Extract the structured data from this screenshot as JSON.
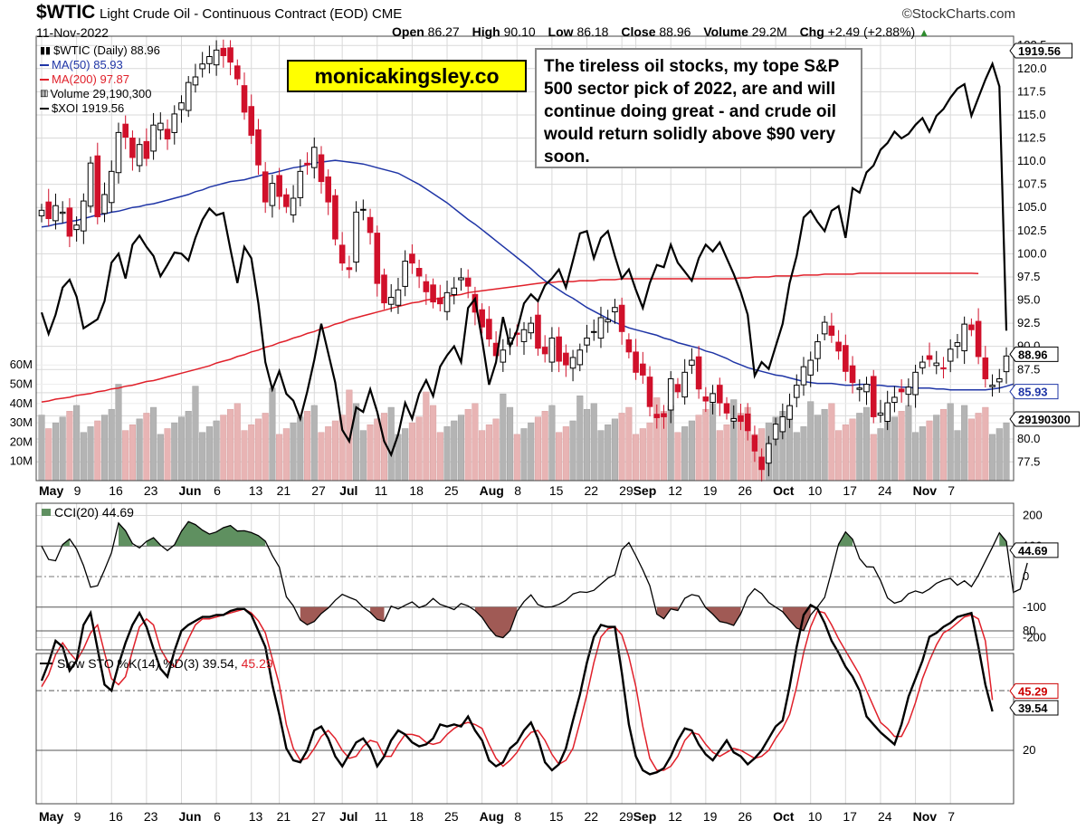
{
  "header": {
    "symbol": "$WTIC",
    "contract": "Light Crude Oil - Continuous Contract (EOD)",
    "exchange": "CME",
    "source": "©StockCharts.com",
    "date": "11-Nov-2022",
    "ohlc": [
      {
        "label": "Open",
        "value": "86.27"
      },
      {
        "label": "High",
        "value": "90.10"
      },
      {
        "label": "Low",
        "value": "86.18"
      },
      {
        "label": "Close",
        "value": "88.96"
      },
      {
        "label": "Volume",
        "value": "29.2M"
      }
    ],
    "chg_label": "Chg",
    "chg_value": "+2.49 (+2.88%)"
  },
  "legend": {
    "wtic": "$WTIC (Daily) 88.96",
    "ma50": "MA(50) 85.93",
    "ma200": "MA(200) 97.87",
    "volume": "Volume 29,190,300",
    "xoi": "$XOI 1919.56"
  },
  "watermark": "monicakingsley.co",
  "note": "The tireless oil stocks, my tope S&P 500 sector pick of 2022, are and will continue doing great - and crude oil would return solidly above $90 very soon.",
  "colors": {
    "up": "#000000",
    "down": "#d0102a",
    "ma50": "#1f35a6",
    "ma200": "#e0202a",
    "volume_up": "#b4b4b4",
    "volume_down": "#e8b4b4",
    "cci_positive_fill": "#5f9060",
    "cci_negative_fill": "#a05a55",
    "stoch_d": "#e0202a",
    "grid": "#d9d9d9"
  },
  "chart_data": [
    {
      "type": "candlestick",
      "panel": "price",
      "x_labels": [
        "May",
        "9",
        "16",
        "23",
        "Jun",
        "6",
        "13",
        "21",
        "27",
        "Jul",
        "11",
        "18",
        "25",
        "Aug",
        "8",
        "15",
        "22",
        "29",
        "Sep",
        "12",
        "19",
        "26",
        "Oct",
        "10",
        "17",
        "24",
        "Nov",
        "7"
      ],
      "x_label_index": [
        0,
        5,
        10,
        15,
        20,
        25,
        30,
        34,
        39,
        43,
        48,
        53,
        58,
        63,
        68,
        73,
        78,
        83,
        85,
        90,
        95,
        100,
        105,
        110,
        115,
        120,
        125,
        130
      ],
      "y_ticks": [
        "77.5",
        "80.0",
        "82.5",
        "85.0",
        "87.5",
        "90.0",
        "92.5",
        "95.0",
        "97.5",
        "100.0",
        "102.5",
        "105.0",
        "107.5",
        "110.0",
        "112.5",
        "115.0",
        "117.5",
        "120.0",
        "122.5"
      ],
      "ylim": [
        75.5,
        123.5
      ],
      "volume_ticks": [
        "10M",
        "20M",
        "30M",
        "40M",
        "50M",
        "60M"
      ],
      "close": [
        104.7,
        103.8,
        105.2,
        104.5,
        101.9,
        103.1,
        105.7,
        109.8,
        104.0,
        106.4,
        108.9,
        113.1,
        112.6,
        110.4,
        111.8,
        110.3,
        113.9,
        114.1,
        112.4,
        115.1,
        116.3,
        118.5,
        119.1,
        120.5,
        121.3,
        122.0,
        121.4,
        120.7,
        118.9,
        115.3,
        112.8,
        109.6,
        105.6,
        107.6,
        106.2,
        105.1,
        106.0,
        108.9,
        109.6,
        111.5,
        107.8,
        105.6,
        101.6,
        99.0,
        98.3,
        104.5,
        104.8,
        102.3,
        96.8,
        94.7,
        95.3,
        96.1,
        99.2,
        99.0,
        97.6,
        95.9,
        94.8,
        94.6,
        95.8,
        96.3,
        97.4,
        96.5,
        93.7,
        92.1,
        90.8,
        89.0,
        89.6,
        90.9,
        91.3,
        91.8,
        92.5,
        89.8,
        89.2,
        90.9,
        88.4,
        88.0,
        88.8,
        89.6,
        90.9,
        91.6,
        93.1,
        92.9,
        94.2,
        91.6,
        89.4,
        87.2,
        86.9,
        83.5,
        82.3,
        82.4,
        86.5,
        85.1,
        87.2,
        88.5,
        85.4,
        84.1,
        84.9,
        83.9,
        82.8,
        82.2,
        81.9,
        80.9,
        78.7,
        76.7,
        79.5,
        81.6,
        82.4,
        83.6,
        85.8,
        87.8,
        88.5,
        90.5,
        92.6,
        91.2,
        89.5,
        87.3,
        86.1,
        85.5,
        85.9,
        82.4,
        82.8,
        83.9,
        84.5,
        85.1,
        85.6,
        87.2,
        88.3,
        88.6,
        88.2,
        87.6,
        89.7,
        90.4,
        92.4,
        91.8,
        88.9,
        86.5,
        85.8,
        86.5,
        88.96
      ],
      "ma50": [
        102.9,
        103.0,
        103.2,
        103.3,
        103.5,
        103.6,
        103.8,
        104.0,
        104.2,
        104.3,
        104.5,
        104.6,
        104.8,
        105.0,
        105.1,
        105.3,
        105.4,
        105.6,
        105.8,
        106.0,
        106.2,
        106.4,
        106.7,
        106.9,
        107.2,
        107.4,
        107.6,
        107.8,
        107.9,
        108.0,
        108.2,
        108.4,
        108.6,
        108.7,
        108.9,
        109.1,
        109.3,
        109.4,
        109.6,
        109.8,
        109.9,
        110.0,
        110.1,
        110.0,
        109.9,
        109.8,
        109.7,
        109.5,
        109.3,
        109.1,
        108.9,
        108.7,
        108.3,
        107.9,
        107.5,
        107.0,
        106.5,
        106.0,
        105.5,
        104.9,
        104.3,
        103.7,
        103.2,
        102.6,
        102.0,
        101.4,
        100.8,
        100.2,
        99.6,
        99.0,
        98.4,
        97.7,
        97.1,
        96.6,
        96.1,
        95.6,
        95.2,
        94.7,
        94.2,
        93.8,
        93.4,
        93.0,
        92.6,
        92.3,
        92.0,
        91.8,
        91.6,
        91.4,
        91.2,
        90.9,
        90.7,
        90.4,
        90.2,
        90.0,
        89.8,
        89.5,
        89.3,
        89.0,
        88.7,
        88.3,
        88.0,
        87.7,
        87.5,
        87.3,
        87.1,
        86.9,
        86.8,
        86.6,
        86.4,
        86.2,
        86.1,
        86.0,
        86.0,
        86.0,
        85.9,
        85.8,
        85.8,
        85.9,
        85.9,
        85.8,
        85.8,
        85.7,
        85.7,
        85.6,
        85.6,
        85.5,
        85.5,
        85.5,
        85.4,
        85.4,
        85.3,
        85.3,
        85.3,
        85.3,
        85.3,
        85.3,
        85.4,
        85.5,
        85.7,
        85.93
      ],
      "ma200": [
        84.0,
        84.1,
        84.3,
        84.4,
        84.5,
        84.7,
        84.8,
        84.9,
        85.1,
        85.2,
        85.4,
        85.5,
        85.7,
        85.8,
        86.0,
        86.2,
        86.3,
        86.5,
        86.7,
        86.9,
        87.1,
        87.3,
        87.5,
        87.7,
        87.9,
        88.2,
        88.4,
        88.6,
        88.9,
        89.1,
        89.4,
        89.6,
        89.9,
        90.1,
        90.4,
        90.6,
        90.9,
        91.1,
        91.4,
        91.6,
        91.9,
        92.1,
        92.4,
        92.6,
        92.9,
        93.1,
        93.3,
        93.5,
        93.7,
        93.9,
        94.1,
        94.3,
        94.5,
        94.7,
        94.8,
        95.0,
        95.1,
        95.2,
        95.4,
        95.5,
        95.6,
        95.8,
        95.9,
        96.0,
        96.1,
        96.2,
        96.3,
        96.4,
        96.5,
        96.6,
        96.7,
        96.8,
        96.9,
        96.9,
        97.0,
        97.0,
        97.0,
        97.1,
        97.1,
        97.1,
        97.2,
        97.2,
        97.2,
        97.3,
        97.3,
        97.3,
        97.3,
        97.3,
        97.3,
        97.3,
        97.3,
        97.3,
        97.3,
        97.3,
        97.3,
        97.3,
        97.3,
        97.3,
        97.3,
        97.3,
        97.4,
        97.4,
        97.5,
        97.5,
        97.5,
        97.6,
        97.6,
        97.6,
        97.6,
        97.7,
        97.7,
        97.7,
        97.8,
        97.8,
        97.8,
        97.8,
        97.8,
        97.9,
        97.9,
        97.9,
        97.9,
        97.9,
        97.9,
        97.9,
        97.9,
        97.9,
        97.9,
        97.9,
        97.9,
        97.9,
        97.9,
        97.9,
        97.9,
        97.9,
        97.87
      ],
      "xoi": [
        2000,
        1905,
        1990,
        2110,
        2145,
        2070,
        1930,
        1950,
        1970,
        2050,
        2220,
        2260,
        2150,
        2300,
        2340,
        2290,
        2250,
        2160,
        2210,
        2265,
        2260,
        2230,
        2330,
        2410,
        2460,
        2430,
        2440,
        2280,
        2130,
        2290,
        2240,
        2040,
        1780,
        1660,
        1740,
        1640,
        1610,
        1530,
        1650,
        1790,
        1950,
        1820,
        1690,
        1480,
        1430,
        1580,
        1560,
        1660,
        1560,
        1430,
        1370,
        1460,
        1600,
        1530,
        1640,
        1700,
        1630,
        1760,
        1810,
        1850,
        1780,
        2020,
        2060,
        1880,
        1680,
        1780,
        1980,
        1850,
        1920,
        2040,
        2080,
        2050,
        2120,
        2150,
        2190,
        2110,
        2230,
        2350,
        2360,
        2240,
        2330,
        2360,
        2250,
        2150,
        2190,
        2100,
        2020,
        2130,
        2210,
        2200,
        2300,
        2220,
        2180,
        2140,
        2240,
        2300,
        2270,
        2310,
        2240,
        2170,
        2090,
        1990,
        1720,
        1780,
        1750,
        1850,
        1950,
        2130,
        2250,
        2420,
        2450,
        2400,
        2360,
        2450,
        2470,
        2330,
        2550,
        2530,
        2620,
        2650,
        2720,
        2750,
        2800,
        2770,
        2790,
        2830,
        2860,
        2800,
        2870,
        2900,
        2950,
        2990,
        3010,
        2870,
        2950,
        3030,
        3100,
        3000,
        1919.56
      ],
      "xoi_label": "1919.56",
      "last_labels": {
        "close": "88.96",
        "ma50": "85.93",
        "ma200": "97.87",
        "volume": "29190300"
      }
    },
    {
      "type": "line",
      "panel": "cci",
      "title": "CCI(20) 44.69",
      "y_ticks": [
        "200",
        "100",
        "0",
        "-100",
        "-200"
      ],
      "ylim": [
        -240,
        240
      ],
      "values": [
        100,
        56,
        52,
        105,
        123,
        90,
        36,
        -35,
        -30,
        22,
        78,
        175,
        150,
        108,
        94,
        115,
        127,
        103,
        85,
        104,
        148,
        180,
        170,
        152,
        139,
        146,
        160,
        167,
        149,
        150,
        144,
        134,
        116,
        69,
        31,
        -66,
        -96,
        -142,
        -158,
        -147,
        -121,
        -103,
        -78,
        -58,
        -68,
        -77,
        -100,
        -117,
        -140,
        -146,
        -97,
        -106,
        -94,
        -83,
        -102,
        -93,
        -72,
        -91,
        -99,
        -108,
        -88,
        -96,
        -111,
        -134,
        -168,
        -194,
        -200,
        -177,
        -114,
        -82,
        -60,
        -92,
        -100,
        -99,
        -91,
        -78,
        -57,
        -50,
        -52,
        -45,
        -25,
        -5,
        6,
        88,
        111,
        68,
        22,
        -30,
        -123,
        -138,
        -106,
        -111,
        -71,
        -59,
        -64,
        -102,
        -123,
        -147,
        -152,
        -160,
        -122,
        -67,
        -40,
        -56,
        -85,
        -100,
        -115,
        -143,
        -169,
        -177,
        -126,
        -99,
        -68,
        17,
        106,
        146,
        122,
        59,
        32,
        31,
        -13,
        -70,
        -87,
        -80,
        -56,
        -47,
        -54,
        -41,
        -22,
        -12,
        -6,
        -28,
        -14,
        -33,
        4,
        50,
        96,
        143,
        115,
        -52,
        -41,
        44.69
      ],
      "last_label": "44.69"
    },
    {
      "type": "line",
      "panel": "stochastics",
      "title": "Slow STO %K(14) %D(3) 39.54,",
      "d_label": "45.29",
      "y_ticks": [
        "80",
        "50",
        "20"
      ],
      "ylim": [
        0,
        100
      ],
      "k": [
        55,
        64,
        75,
        72,
        60,
        65,
        83,
        89,
        71,
        53,
        50,
        63,
        74,
        83,
        89,
        82,
        71,
        61,
        57,
        70,
        80,
        83,
        85,
        87,
        87,
        88,
        88,
        90,
        91,
        91,
        88,
        80,
        72,
        53,
        38,
        21,
        15,
        14,
        20,
        30,
        32,
        26,
        17,
        12,
        18,
        24,
        26,
        21,
        12,
        17,
        25,
        30,
        28,
        24,
        22,
        23,
        26,
        33,
        32,
        33,
        32,
        37,
        30,
        25,
        15,
        12,
        14,
        21,
        24,
        30,
        34,
        26,
        14,
        10,
        13,
        21,
        35,
        48,
        64,
        77,
        83,
        82,
        82,
        59,
        33,
        17,
        10,
        8,
        9,
        11,
        17,
        25,
        31,
        30,
        23,
        18,
        15,
        20,
        25,
        19,
        17,
        13,
        16,
        20,
        26,
        32,
        35,
        52,
        72,
        88,
        93,
        91,
        84,
        75,
        69,
        62,
        57,
        50,
        37,
        33,
        29,
        26,
        23,
        33,
        47,
        56,
        65,
        77,
        79,
        82,
        84,
        87,
        88,
        89,
        72,
        53,
        39.54
      ],
      "d": [
        52,
        58,
        68,
        74,
        69,
        65,
        71,
        79,
        83,
        69,
        56,
        53,
        57,
        70,
        82,
        86,
        83,
        71,
        65,
        62,
        68,
        76,
        83,
        86,
        86,
        87,
        88,
        89,
        90,
        91,
        89,
        85,
        79,
        66,
        53,
        33,
        21,
        15,
        16,
        21,
        27,
        30,
        26,
        20,
        16,
        17,
        22,
        25,
        24,
        17,
        17,
        23,
        28,
        28,
        27,
        24,
        23,
        24,
        28,
        31,
        33,
        34,
        33,
        31,
        23,
        16,
        12,
        15,
        19,
        25,
        29,
        30,
        25,
        18,
        13,
        15,
        21,
        34,
        48,
        64,
        77,
        81,
        82,
        78,
        67,
        52,
        32,
        16,
        10,
        10,
        12,
        17,
        25,
        29,
        28,
        23,
        19,
        17,
        19,
        21,
        20,
        18,
        16,
        17,
        20,
        26,
        31,
        38,
        52,
        69,
        82,
        90,
        89,
        83,
        76,
        70,
        64,
        58,
        50,
        42,
        34,
        31,
        27,
        27,
        34,
        44,
        56,
        65,
        73,
        79,
        81,
        84,
        87,
        88,
        86,
        75,
        45.29
      ],
      "last_k": "39.54"
    }
  ]
}
